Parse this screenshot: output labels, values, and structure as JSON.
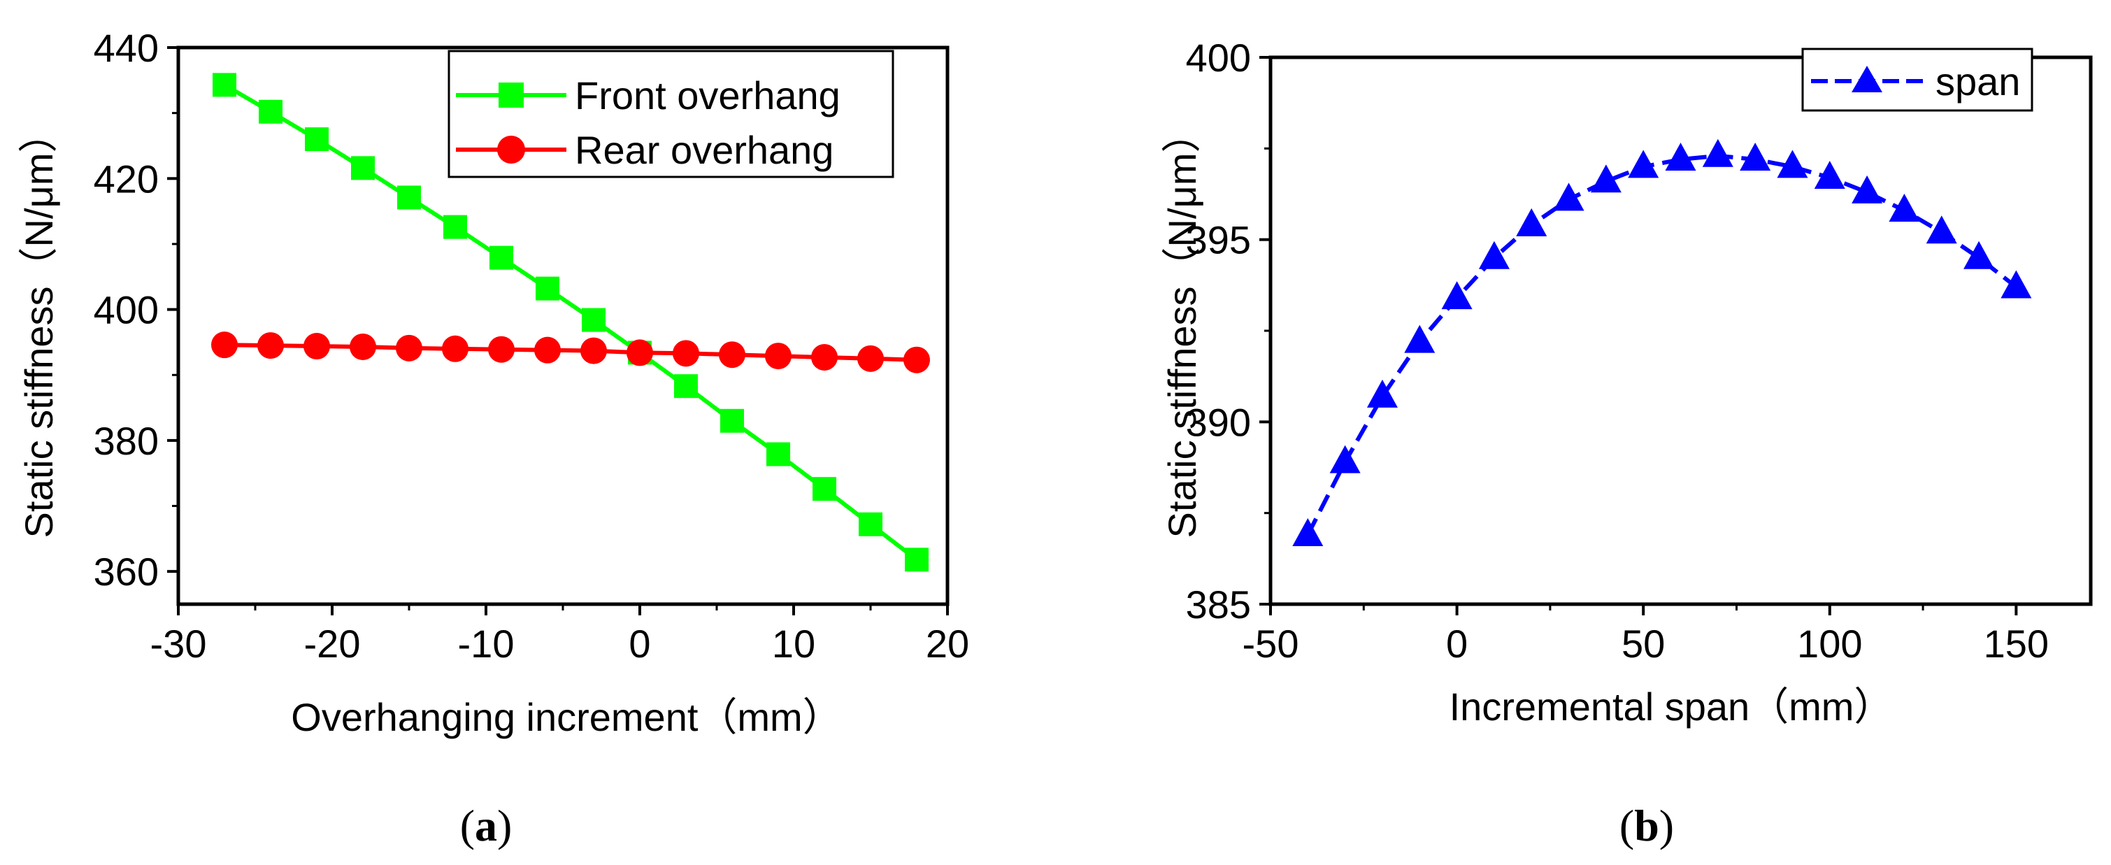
{
  "chart_data": [
    {
      "type": "line",
      "panel_label": "(a)",
      "panel_letter": "a",
      "xlabel": "Overhanging increment（mm）",
      "ylabel": "Static stiffness（N/μm）",
      "xlim": [
        -30,
        20
      ],
      "ylim": [
        355,
        440
      ],
      "xticks": [
        -30,
        -20,
        -10,
        0,
        10,
        20
      ],
      "yticks": [
        360,
        380,
        400,
        420,
        440
      ],
      "x_minor_step": 5,
      "y_minor_step": 10,
      "grid": false,
      "legend_position": "top-right",
      "x": [
        -27,
        -24,
        -21,
        -18,
        -15,
        -12,
        -9,
        -6,
        -3,
        0,
        3,
        6,
        9,
        12,
        15,
        18
      ],
      "series": [
        {
          "name": "Front overhang",
          "color": "#00ff00",
          "marker": "square",
          "line_style": "solid",
          "values": [
            434.3,
            430.2,
            426.0,
            421.6,
            417.1,
            412.6,
            407.9,
            403.2,
            398.4,
            393.4,
            388.3,
            383.0,
            377.9,
            372.6,
            367.2,
            361.8
          ]
        },
        {
          "name": "Rear overhang",
          "color": "#ff0000",
          "marker": "circle",
          "line_style": "solid",
          "values": [
            394.6,
            394.5,
            394.4,
            394.3,
            394.1,
            394.0,
            393.9,
            393.8,
            393.7,
            393.4,
            393.3,
            393.1,
            392.9,
            392.7,
            392.5,
            392.3
          ]
        }
      ]
    },
    {
      "type": "line",
      "panel_label": "(b)",
      "panel_letter": "b",
      "xlabel": "Incremental span（mm）",
      "ylabel": "Static stiffness（N/μm）",
      "xlim": [
        -50,
        170
      ],
      "ylim": [
        385,
        400
      ],
      "xticks": [
        -50,
        0,
        50,
        100,
        150
      ],
      "yticks": [
        385,
        390,
        395,
        400
      ],
      "x_minor_step": 25,
      "y_minor_step": 2.5,
      "grid": false,
      "legend_position": "top-right",
      "x": [
        -40,
        -30,
        -20,
        -10,
        0,
        10,
        20,
        30,
        40,
        50,
        60,
        70,
        80,
        90,
        100,
        110,
        120,
        130,
        140,
        150
      ],
      "series": [
        {
          "name": "span",
          "color": "#0000ff",
          "marker": "triangle",
          "line_style": "dashed",
          "values": [
            386.9,
            388.9,
            390.7,
            392.2,
            393.4,
            394.5,
            395.4,
            396.1,
            396.6,
            397.0,
            397.2,
            397.3,
            397.2,
            397.0,
            396.7,
            396.3,
            395.8,
            395.2,
            394.5,
            393.7
          ]
        }
      ]
    }
  ]
}
